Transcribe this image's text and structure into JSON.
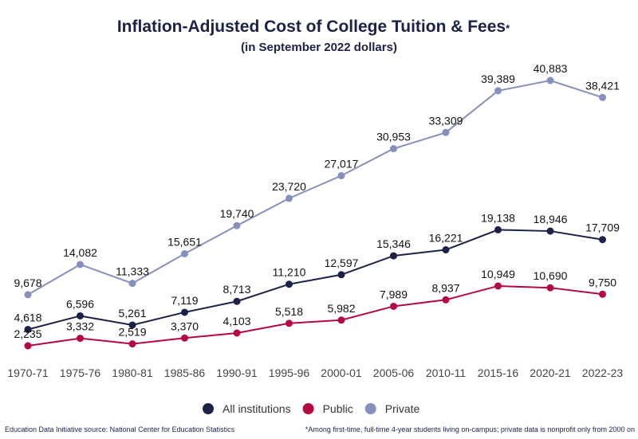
{
  "chart_data": {
    "type": "line",
    "title": "Inflation-Adjusted Cost of College Tuition & Fees",
    "title_mark": "*",
    "subtitle": "(in September 2022 dollars)",
    "categories": [
      "1970-71",
      "1975-76",
      "1980-81",
      "1985-86",
      "1990-91",
      "1995-96",
      "2000-01",
      "2005-06",
      "2010-11",
      "2015-16",
      "2020-21",
      "2022-23"
    ],
    "series": [
      {
        "name": "All institutions",
        "color": "#1b2147",
        "values": [
          4618,
          6596,
          5261,
          7119,
          8713,
          11210,
          12597,
          15346,
          16221,
          19138,
          18946,
          17709
        ]
      },
      {
        "name": "Public",
        "color": "#b3093f",
        "values": [
          2235,
          3332,
          2519,
          3370,
          4103,
          5518,
          5982,
          7989,
          8937,
          10949,
          10690,
          9750
        ]
      },
      {
        "name": "Private",
        "color": "#8790bd",
        "values": [
          9678,
          14082,
          11333,
          15651,
          19740,
          23720,
          27017,
          30953,
          33309,
          39389,
          40883,
          38421
        ]
      }
    ],
    "grid": false,
    "legend_position": "bottom",
    "footer_left": "Education Data Initiative source: National Center for Education Statistics",
    "footer_right": "*Among first-time, full-time 4-year students living on-campus; private data is nonprofit only from 2000 on"
  }
}
